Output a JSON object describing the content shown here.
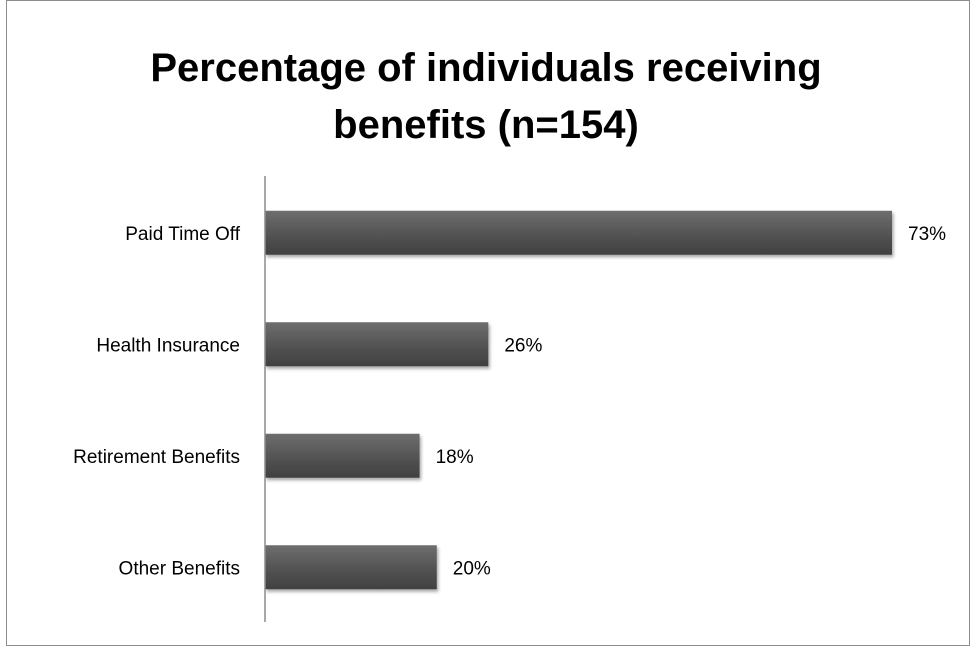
{
  "chart_data": {
    "type": "bar",
    "orientation": "horizontal",
    "title_lines": [
      "Percentage of individuals receiving",
      "benefits (n=154)"
    ],
    "categories": [
      "Paid Time Off",
      "Health Insurance",
      "Retirement Benefits",
      "Other Benefits"
    ],
    "values": [
      73,
      26,
      18,
      20
    ],
    "value_labels": [
      "73%",
      "26%",
      "18%",
      "20%"
    ],
    "xlim": [
      0,
      73
    ],
    "grid": false,
    "legend": "none",
    "bar_color": "#595959"
  }
}
